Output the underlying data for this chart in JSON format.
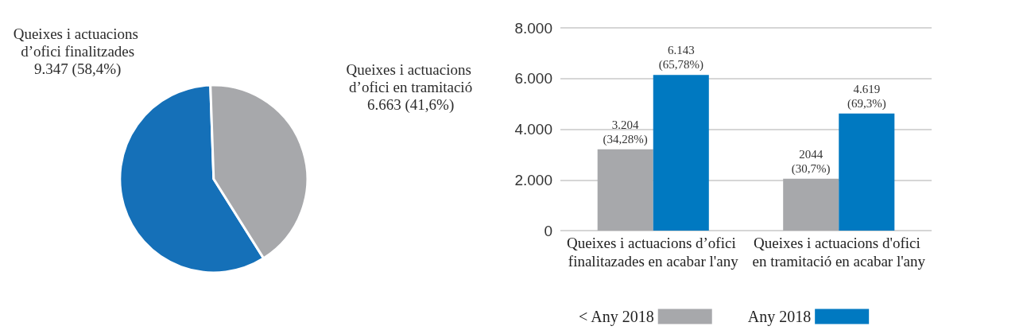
{
  "chart_data": [
    {
      "type": "pie",
      "categories": [
        "Queixes i actuacions d’ofici finalitzades",
        "Queixes i actuacions d’ofici en tramitació"
      ],
      "values": [
        9347,
        6663
      ],
      "colors": [
        "#1570b8",
        "#a7a8ab"
      ],
      "value_labels": [
        "9.347 (58,4%)",
        "6.663 (41,6%)"
      ]
    },
    {
      "type": "bar",
      "categories": [
        "Queixes i actuacions d’ofici finalitazades en acabar l'any",
        "Queixes i actuacions d'ofici en tramitació en acabar l'any"
      ],
      "series": [
        {
          "name": "< Any 2018",
          "color": "#a7a8ab",
          "values": [
            3204,
            2044
          ],
          "value_labels": [
            "3.204 (34,28%)",
            "2044 (30,7%)"
          ]
        },
        {
          "name": "Any 2018",
          "color": "#0079c1",
          "values": [
            6143,
            4619
          ],
          "value_labels": [
            "6.143 (65,78%)",
            "4.619 (69,3%)"
          ]
        }
      ],
      "ylim": [
        0,
        8000
      ],
      "yticks": [
        0,
        {
          "value": 2000,
          "label": "2.000"
        },
        {
          "value": 4000,
          "label": "4.000"
        },
        {
          "value": 6000,
          "label": "6.000"
        },
        {
          "value": 8000,
          "label": "8.000"
        }
      ],
      "grid": "y",
      "legend": "bottom"
    }
  ]
}
